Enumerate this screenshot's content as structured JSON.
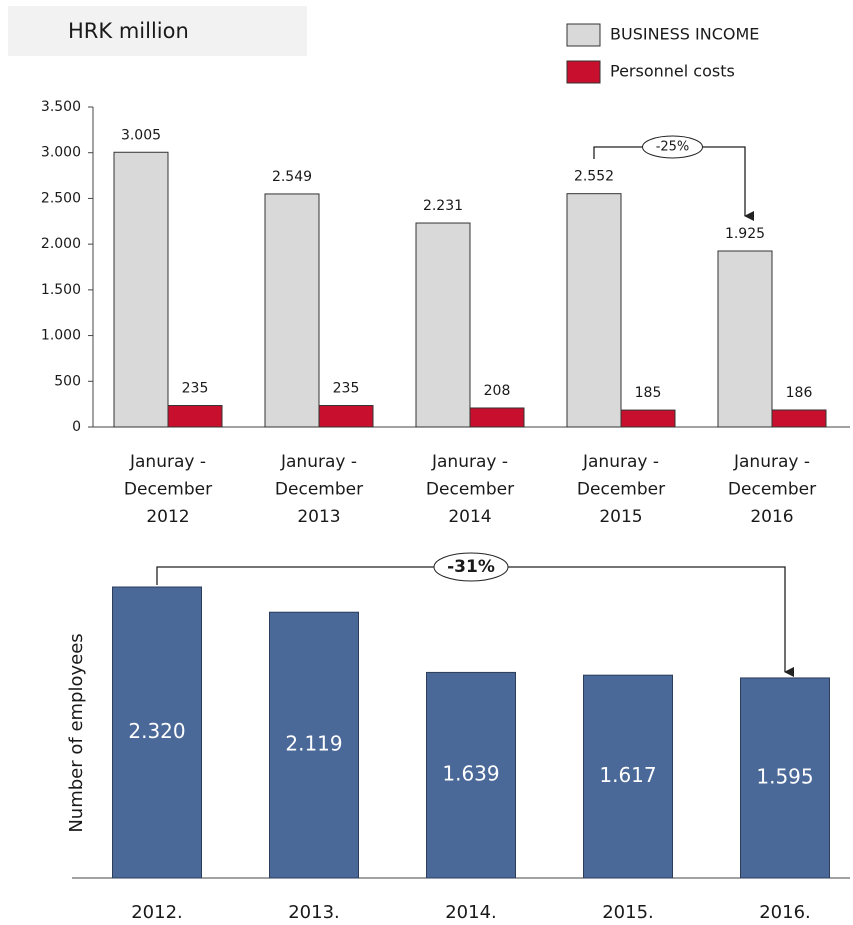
{
  "chart_data": [
    {
      "type": "bar",
      "title": "HRK million",
      "categories": [
        [
          "Januray -",
          "December",
          "2012"
        ],
        [
          "Januray -",
          "December",
          "2013"
        ],
        [
          "Januray -",
          "December",
          "2014"
        ],
        [
          "Januray -",
          "December",
          "2015"
        ],
        [
          "Januray -",
          "December",
          "2016"
        ]
      ],
      "series": [
        {
          "name": "BUSINESS INCOME",
          "color": "#d9d9d9",
          "values": [
            3005,
            2549,
            2231,
            2552,
            1925
          ],
          "value_labels": [
            "3.005",
            "2.549",
            "2.231",
            "2.552",
            "1.925"
          ]
        },
        {
          "name": "Personnel costs",
          "color": "#c8102e",
          "values": [
            235,
            235,
            208,
            185,
            186
          ]
        }
      ],
      "ylim": [
        0,
        3500
      ],
      "yticks": [
        0,
        500,
        {
          "value": 1000,
          "label": "1.000"
        },
        {
          "value": 1500,
          "label": "1.500"
        },
        {
          "value": 2000,
          "label": "2.000"
        },
        {
          "value": 2500,
          "label": "2.500"
        },
        {
          "value": 3000,
          "label": "3.000"
        },
        {
          "value": 3500,
          "label": "3.500"
        }
      ],
      "annotations": [
        "-25%"
      ]
    },
    {
      "type": "bar",
      "ylabel": "Number of employees",
      "categories": [
        "2012.",
        "2013.",
        "2014.",
        "2015.",
        "2016."
      ],
      "values": [
        2320,
        2119,
        1639,
        1617,
        1595
      ],
      "value_labels": [
        "2.320",
        "2.119",
        "1.639",
        "1.617",
        "1.595"
      ],
      "color": "#4a6898",
      "annotations": [
        "-31%"
      ]
    }
  ]
}
